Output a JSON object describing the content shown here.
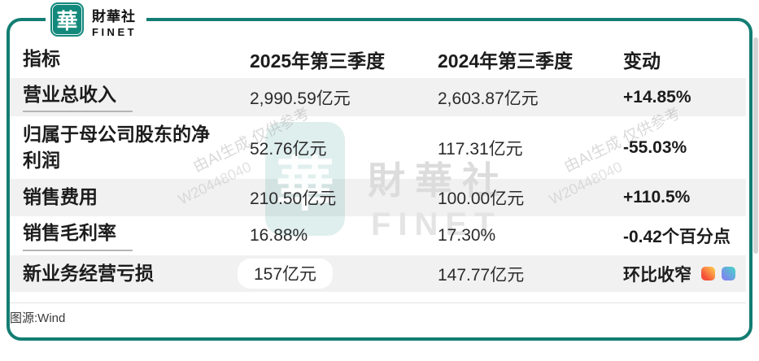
{
  "brand": {
    "logo_char": "華",
    "name_cn": "財華社",
    "name_en": "FINET"
  },
  "chart_data": {
    "type": "table",
    "columns": [
      "指标",
      "2025年第三季度",
      "2024年第三季度",
      "变动"
    ],
    "rows": [
      [
        "营业总收入",
        "2,990.59亿元",
        "2,603.87亿元",
        "+14.85%"
      ],
      [
        "归属于母公司股东的净利润",
        "52.76亿元",
        "117.31亿元",
        "-55.03%"
      ],
      [
        "销售费用",
        "210.50亿元",
        "100.00亿元",
        "+110.5%"
      ],
      [
        "销售毛利率",
        "16.88%",
        "17.30%",
        "-0.42个百分点"
      ],
      [
        "新业务经营亏损",
        "157亿元",
        "147.77亿元",
        "环比收窄"
      ]
    ]
  },
  "source_label": "图源:Wind",
  "watermark": {
    "logo_char": "華",
    "name_cn": "財華社",
    "name_en": "FINET",
    "ai_text": "由AI生成 仅供参考",
    "ai_code": "W20448040"
  },
  "colors": {
    "frame_teal": "#137d73",
    "logo_teal": "#13897c",
    "row_shade": "#f1f1f1",
    "icon_warm": [
      "#ffd44f",
      "#f4503a"
    ],
    "icon_cool": [
      "#45d7c6",
      "#7e88ee"
    ]
  }
}
